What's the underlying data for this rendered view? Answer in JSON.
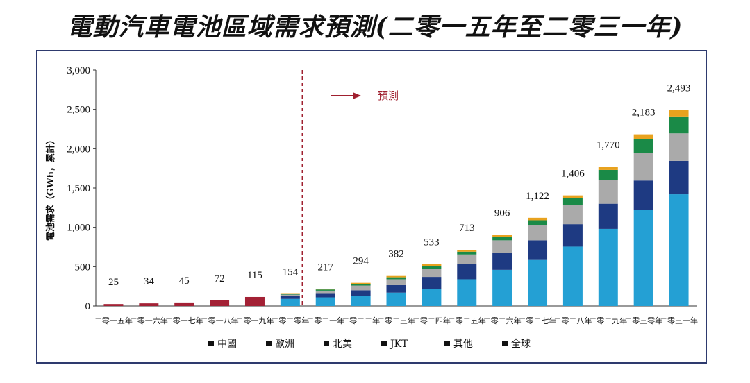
{
  "title": "電動汽車電池區域需求預測(二零一五年至二零三一年)",
  "chart_data": {
    "type": "bar",
    "stacked": true,
    "ylabel": "電池需求（GWh，累計）",
    "ylim": [
      0,
      3000
    ],
    "yticks": [
      0,
      500,
      1000,
      1500,
      2000,
      2500,
      3000
    ],
    "ytick_labels": [
      "0",
      "500",
      "1,000",
      "1,500",
      "2,000",
      "2,500",
      "3,000"
    ],
    "grid": false,
    "legend_position": "bottom",
    "categories": [
      "二零一五年",
      "二零一六年",
      "二零一七年",
      "二零一八年",
      "二零一九年",
      "二零二零年",
      "二零二一年",
      "二零二二年",
      "二零二三年",
      "二零二四年",
      "二零二五年",
      "二零二六年",
      "二零二七年",
      "二零二八年",
      "二零二九年",
      "二零三零年",
      "二零三一年"
    ],
    "total_labels": [
      "25",
      "34",
      "45",
      "72",
      "115",
      "154",
      "217",
      "294",
      "382",
      "533",
      "713",
      "906",
      "1,122",
      "1,406",
      "1,770",
      "2,183",
      "2,493"
    ],
    "series": [
      {
        "name": "中國",
        "color": "#24a0d4",
        "values": [
          0,
          0,
          0,
          0,
          0,
          90,
          110,
          125,
          170,
          220,
          340,
          460,
          585,
          755,
          980,
          1225,
          1420
        ]
      },
      {
        "name": "歐洲",
        "color": "#1e3a82",
        "values": [
          0,
          0,
          0,
          0,
          0,
          35,
          45,
          75,
          95,
          150,
          195,
          215,
          250,
          285,
          320,
          370,
          425
        ]
      },
      {
        "name": "北美",
        "color": "#aaaaaa",
        "values": [
          0,
          0,
          0,
          0,
          0,
          20,
          40,
          60,
          75,
          105,
          120,
          160,
          195,
          245,
          300,
          350,
          350
        ]
      },
      {
        "name": "JKT",
        "color": "#1a8a47",
        "values": [
          0,
          0,
          0,
          0,
          0,
          5,
          15,
          20,
          25,
          35,
          35,
          45,
          60,
          85,
          130,
          175,
          215
        ]
      },
      {
        "name": "其他",
        "color": "#e8a21e",
        "values": [
          0,
          0,
          0,
          0,
          0,
          4,
          7,
          14,
          17,
          23,
          23,
          26,
          32,
          36,
          40,
          63,
          83
        ]
      },
      {
        "name": "全球",
        "color": "#a32135",
        "values": [
          25,
          34,
          45,
          72,
          115,
          0,
          0,
          0,
          0,
          0,
          0,
          0,
          0,
          0,
          0,
          0,
          0
        ]
      }
    ],
    "annotation": "預測",
    "forecast_divider_after_index": 5
  }
}
